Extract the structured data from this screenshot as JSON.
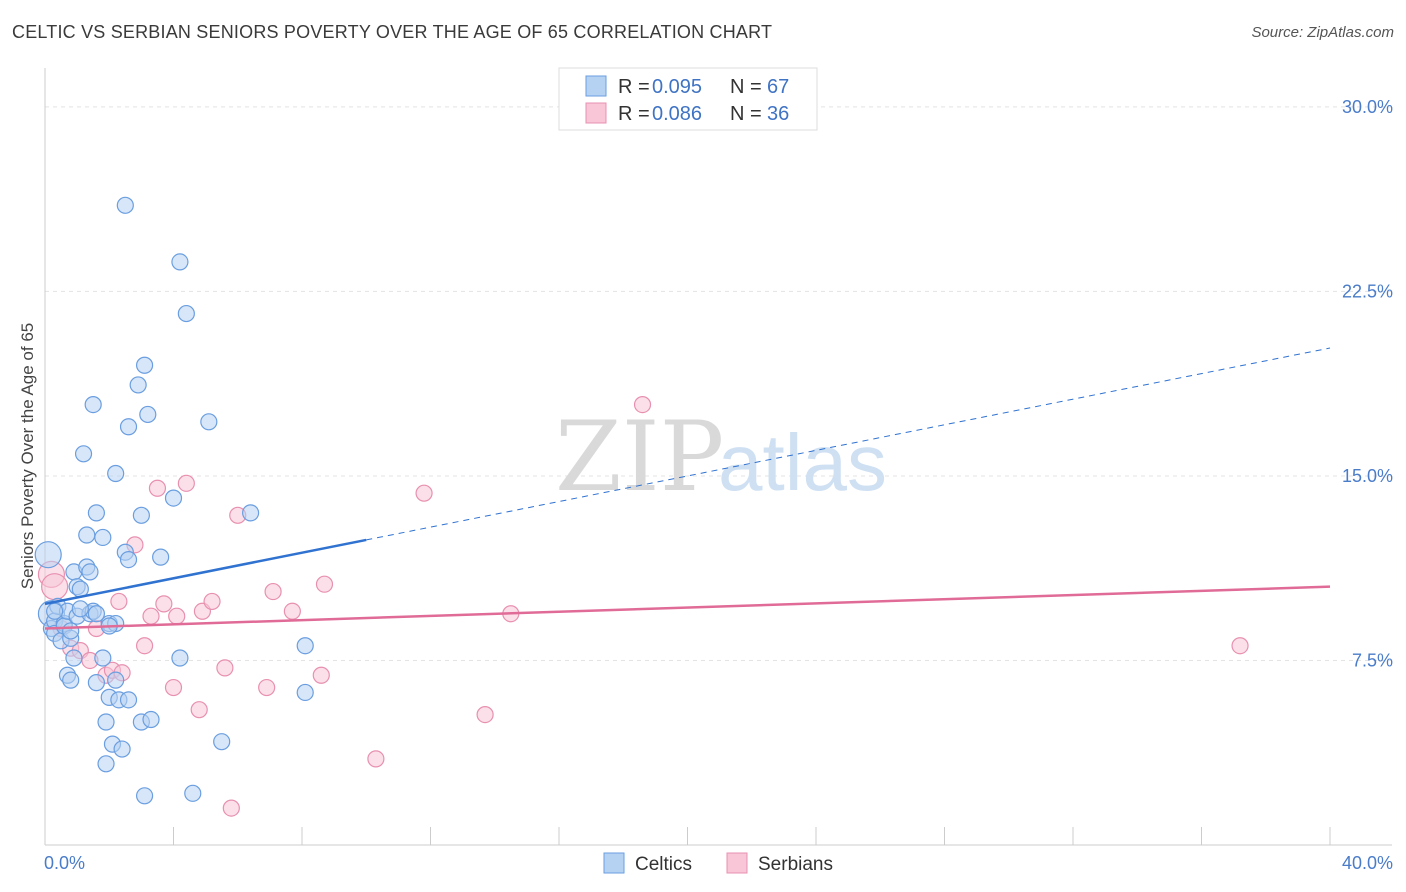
{
  "header": {
    "title": "CELTIC VS SERBIAN SENIORS POVERTY OVER THE AGE OF 65 CORRELATION CHART",
    "source": "Source: ZipAtlas.com"
  },
  "watermark": {
    "zip": "ZIP",
    "atlas": "atlas"
  },
  "chart_data": {
    "type": "scatter",
    "title": "CELTIC VS SERBIAN SENIORS POVERTY OVER THE AGE OF 65 CORRELATION CHART",
    "ylabel": "Seniors Poverty Over the Age of 65",
    "xlabel": "",
    "xlim": [
      0,
      40
    ],
    "ylim": [
      0,
      31.5
    ],
    "x_tick_labels": [
      {
        "value": 0,
        "label": "0.0%"
      },
      {
        "value": 40,
        "label": "40.0%"
      }
    ],
    "y_tick_labels": [
      {
        "value": 7.5,
        "label": "7.5%"
      },
      {
        "value": 15,
        "label": "15.0%"
      },
      {
        "value": 22.5,
        "label": "22.5%"
      },
      {
        "value": 30,
        "label": "30.0%"
      }
    ],
    "grid": true,
    "legend": {
      "placement": "top-center",
      "entries": [
        {
          "series": "Celtics",
          "r_label": "R = ",
          "r_value": "0.095",
          "n_label": "N = ",
          "n_value": "67"
        },
        {
          "series": "Serbians",
          "r_label": "R = ",
          "r_value": "0.086",
          "n_label": "N = ",
          "n_value": "36"
        }
      ]
    },
    "bottom_legend": [
      "Celtics",
      "Serbians"
    ],
    "colors": {
      "celtics_fill": "#b6d2f3",
      "celtics_stroke": "#6a9ee0",
      "celtics_line": "#2f72d0",
      "serbians_fill": "#f8c6d7",
      "serbians_stroke": "#e890b0",
      "serbians_line": "#e06b97"
    },
    "series": [
      {
        "name": "Celtics",
        "trend": {
          "x0": 0,
          "y0": 9.8,
          "x1": 10,
          "y1": 12.4,
          "dashed_to_x": 40,
          "dashed_to_y": 20.2
        },
        "points": [
          [
            0.1,
            11.8
          ],
          [
            0.2,
            9.4
          ],
          [
            0.2,
            8.8
          ],
          [
            0.3,
            9.1
          ],
          [
            0.3,
            8.6
          ],
          [
            0.4,
            9.7
          ],
          [
            0.5,
            8.3
          ],
          [
            0.6,
            9.0
          ],
          [
            0.6,
            8.9
          ],
          [
            0.7,
            9.5
          ],
          [
            0.8,
            8.4
          ],
          [
            0.8,
            8.7
          ],
          [
            0.7,
            6.9
          ],
          [
            0.8,
            6.7
          ],
          [
            0.9,
            7.6
          ],
          [
            0.9,
            11.1
          ],
          [
            1.0,
            9.3
          ],
          [
            1.0,
            10.5
          ],
          [
            1.1,
            10.4
          ],
          [
            1.2,
            15.9
          ],
          [
            1.3,
            11.3
          ],
          [
            1.3,
            12.6
          ],
          [
            1.4,
            11.1
          ],
          [
            1.4,
            9.4
          ],
          [
            1.5,
            17.9
          ],
          [
            1.5,
            9.5
          ],
          [
            1.6,
            9.4
          ],
          [
            1.6,
            6.6
          ],
          [
            1.6,
            13.5
          ],
          [
            1.8,
            12.5
          ],
          [
            1.8,
            7.6
          ],
          [
            1.9,
            3.3
          ],
          [
            1.9,
            5.0
          ],
          [
            2.0,
            9.0
          ],
          [
            2.0,
            6.0
          ],
          [
            2.1,
            4.1
          ],
          [
            2.2,
            6.7
          ],
          [
            2.2,
            9.0
          ],
          [
            2.2,
            15.1
          ],
          [
            2.3,
            5.9
          ],
          [
            2.4,
            3.9
          ],
          [
            2.5,
            11.9
          ],
          [
            2.5,
            26.0
          ],
          [
            2.6,
            11.6
          ],
          [
            2.6,
            5.9
          ],
          [
            2.6,
            17.0
          ],
          [
            2.9,
            18.7
          ],
          [
            3.0,
            13.4
          ],
          [
            3.0,
            5.0
          ],
          [
            3.1,
            2.0
          ],
          [
            3.1,
            19.5
          ],
          [
            3.2,
            17.5
          ],
          [
            3.3,
            5.1
          ],
          [
            3.6,
            11.7
          ],
          [
            4.0,
            14.1
          ],
          [
            4.2,
            23.7
          ],
          [
            4.2,
            7.6
          ],
          [
            4.4,
            21.6
          ],
          [
            4.6,
            2.1
          ],
          [
            5.1,
            17.2
          ],
          [
            5.5,
            4.2
          ],
          [
            6.4,
            13.5
          ],
          [
            8.1,
            8.1
          ],
          [
            8.1,
            6.2
          ],
          [
            0.3,
            9.5
          ],
          [
            1.1,
            9.6
          ],
          [
            2.0,
            8.9
          ]
        ]
      },
      {
        "name": "Serbians",
        "trend": {
          "x0": 0,
          "y0": 8.8,
          "x1": 40,
          "y1": 10.5
        },
        "points": [
          [
            0.2,
            11.0
          ],
          [
            0.3,
            10.5
          ],
          [
            0.5,
            8.8
          ],
          [
            0.8,
            8.0
          ],
          [
            1.1,
            7.9
          ],
          [
            1.4,
            7.5
          ],
          [
            1.6,
            8.8
          ],
          [
            1.9,
            6.9
          ],
          [
            2.1,
            7.1
          ],
          [
            2.3,
            9.9
          ],
          [
            2.4,
            7.0
          ],
          [
            2.8,
            12.2
          ],
          [
            3.1,
            8.1
          ],
          [
            3.3,
            9.3
          ],
          [
            3.5,
            14.5
          ],
          [
            3.7,
            9.8
          ],
          [
            4.0,
            6.4
          ],
          [
            4.1,
            9.3
          ],
          [
            4.4,
            14.7
          ],
          [
            4.8,
            5.5
          ],
          [
            4.9,
            9.5
          ],
          [
            5.2,
            9.9
          ],
          [
            5.6,
            7.2
          ],
          [
            5.8,
            1.5
          ],
          [
            6.0,
            13.4
          ],
          [
            6.9,
            6.4
          ],
          [
            7.1,
            10.3
          ],
          [
            7.7,
            9.5
          ],
          [
            8.6,
            6.9
          ],
          [
            8.7,
            10.6
          ],
          [
            10.3,
            3.5
          ],
          [
            11.8,
            14.3
          ],
          [
            13.7,
            5.3
          ],
          [
            14.5,
            9.4
          ],
          [
            18.6,
            17.9
          ],
          [
            37.2,
            8.1
          ]
        ]
      }
    ]
  }
}
